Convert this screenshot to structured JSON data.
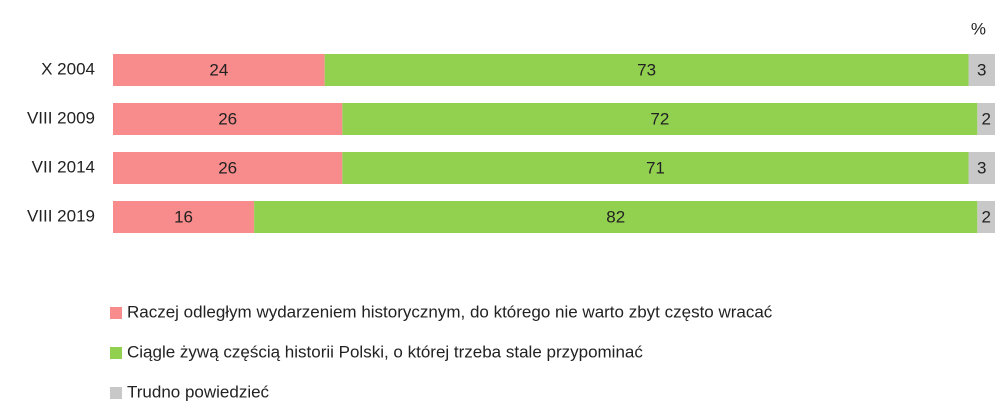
{
  "chart_data": {
    "type": "bar",
    "orientation": "horizontal",
    "stacked": true,
    "unit_label": "%",
    "categories": [
      "X 2004",
      "VIII 2009",
      "VII 2014",
      "VIII 2019"
    ],
    "xlim": [
      0,
      100
    ],
    "series": [
      {
        "name": "Raczej odległym wydarzeniem historycznym, do którego nie warto zbyt często wracać",
        "color": "#f88b8b",
        "values": [
          24,
          26,
          26,
          16
        ]
      },
      {
        "name": "Ciągle żywą częścią historii Polski, o której trzeba stale przypominać",
        "color": "#92d050",
        "values": [
          73,
          72,
          71,
          82
        ]
      },
      {
        "name": "Trudno powiedzieć",
        "color": "#c8c8c8",
        "values": [
          3,
          2,
          3,
          2
        ]
      }
    ]
  }
}
